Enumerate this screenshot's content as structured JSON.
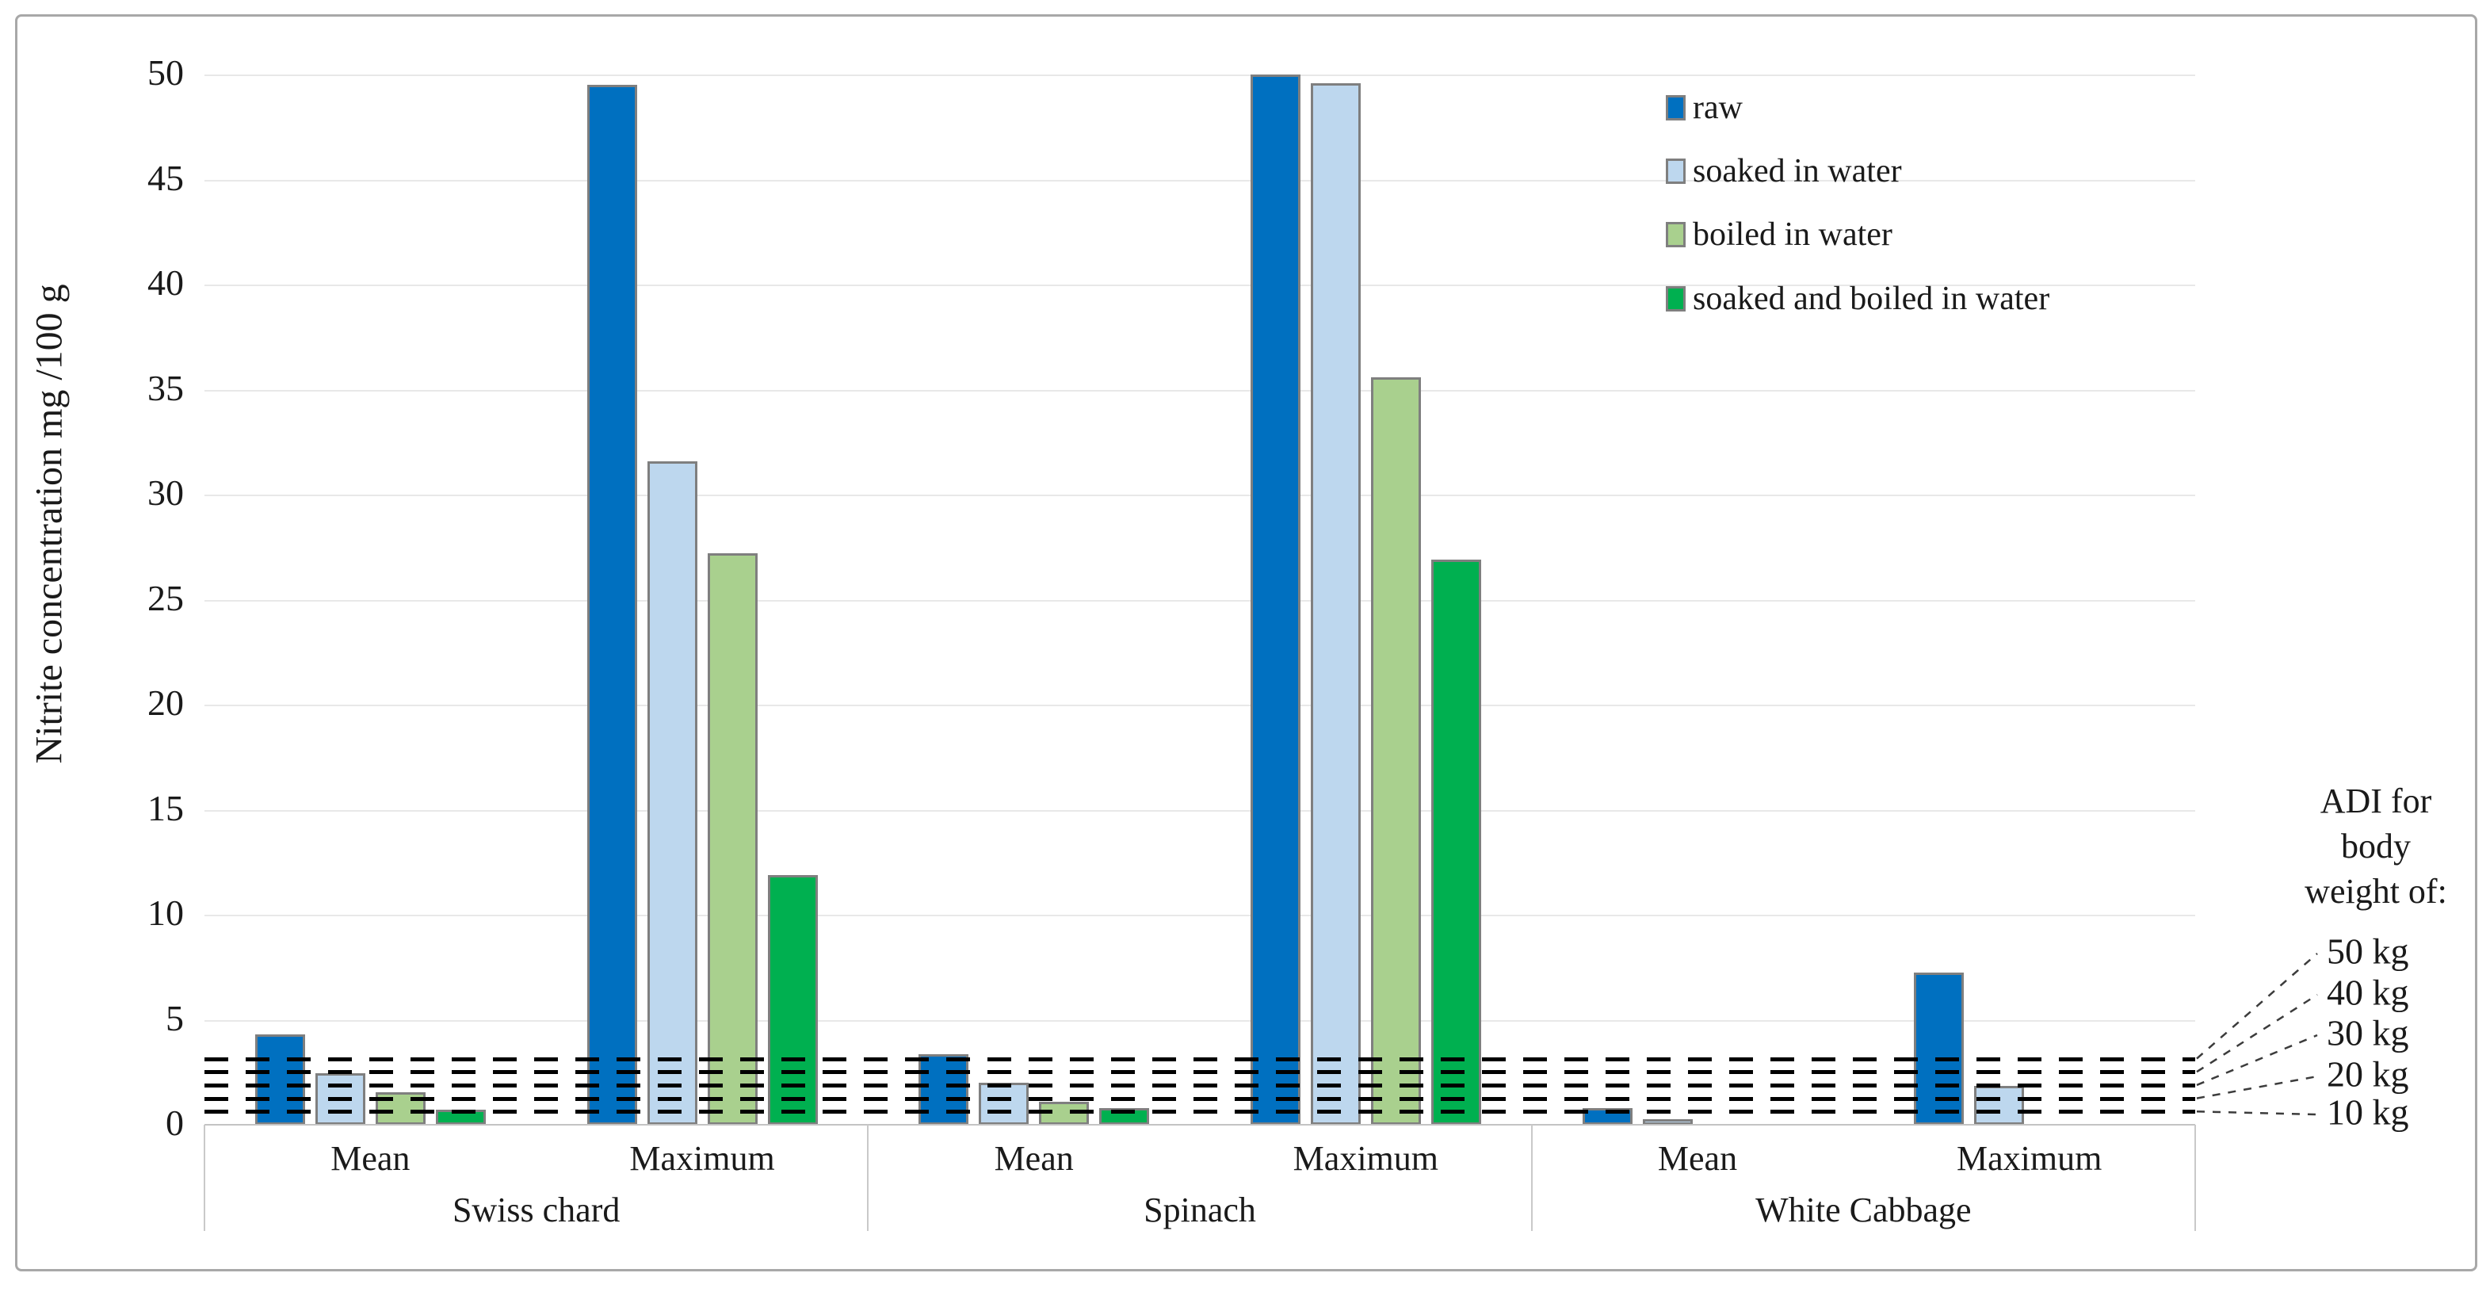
{
  "figure": {
    "background": "#ffffff",
    "border_color": "#a8a8a8"
  },
  "chart_data": {
    "type": "bar",
    "title": "",
    "ylabel": "Nitrite concentration mg /100 g",
    "xlabel": "",
    "ylim": [
      0,
      50
    ],
    "yticks": [
      0,
      5,
      10,
      15,
      20,
      25,
      30,
      35,
      40,
      45,
      50
    ],
    "grid": "horizontal",
    "legend_position": "top-right-inside",
    "group_labels": [
      "Swiss chard",
      "Spinach",
      "White Cabbage"
    ],
    "category_labels": [
      "Mean",
      "Maximum"
    ],
    "categories": [
      "Swiss chard Mean",
      "Swiss chard Maximum",
      "Spinach Mean",
      "Spinach Maximum",
      "White Cabbage Mean",
      "White Cabbage Maximum"
    ],
    "series": [
      {
        "name": "raw",
        "color": "#0070c0",
        "values": [
          4.3,
          49.5,
          3.35,
          50.0,
          0.8,
          7.25
        ]
      },
      {
        "name": "soaked in water",
        "color": "#bdd7ee",
        "values": [
          2.45,
          31.6,
          2.0,
          49.6,
          0.25,
          1.85
        ]
      },
      {
        "name": "boiled in water",
        "color": "#a9d08e",
        "values": [
          1.55,
          27.2,
          1.1,
          35.6,
          0,
          0
        ]
      },
      {
        "name": "soaked and boiled in water",
        "color": "#00b050",
        "values": [
          0.7,
          11.9,
          0.8,
          26.9,
          0,
          0
        ]
      }
    ],
    "bar_border_color": "#7f7f7f",
    "annotations": {
      "adi_heading_lines": [
        "ADI for",
        "body",
        "weight of:"
      ],
      "adi_lines": [
        {
          "label": "50 kg",
          "value": 3.15
        },
        {
          "label": "40 kg",
          "value": 2.52
        },
        {
          "label": "30 kg",
          "value": 1.89
        },
        {
          "label": "20 kg",
          "value": 1.26
        },
        {
          "label": "10 kg",
          "value": 0.63
        }
      ]
    }
  }
}
